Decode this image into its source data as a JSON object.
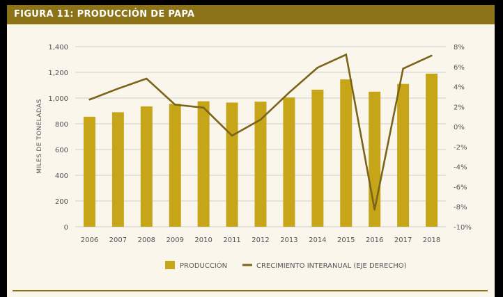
{
  "figure": {
    "title": "FIGURA 11: PRODUCCIÓN DE PAPA"
  },
  "colors": {
    "frame": "#8c7318",
    "bar": "#c6a618",
    "line": "#7a6419",
    "grid": "#cfcfcf",
    "background": "#faf6ec"
  },
  "chart_data": {
    "type": "bar+line",
    "title": "FIGURA 11: PRODUCCIÓN DE PAPA",
    "categories": [
      "2006",
      "2007",
      "2008",
      "2009",
      "2010",
      "2011",
      "2012",
      "2013",
      "2014",
      "2015",
      "2016",
      "2017",
      "2018"
    ],
    "ylabel": "MILES DE TONELADAS",
    "ylim": [
      0,
      1400
    ],
    "yticks": [
      "1,400",
      "1,200",
      "1,000",
      "800",
      "600",
      "400",
      "200",
      "0"
    ],
    "y2lim": [
      -10,
      8
    ],
    "y2ticks": [
      "8%",
      "6%",
      "4%",
      "2%",
      "0%",
      "-2%",
      "-4%",
      "-6%",
      "-8%",
      "-10%"
    ],
    "grid": true,
    "legend_position": "bottom",
    "series": [
      {
        "name": "PRODUCCIÓN",
        "type": "bar",
        "axis": "left",
        "values": [
          855,
          890,
          935,
          955,
          975,
          965,
          972,
          1005,
          1065,
          1145,
          1050,
          1110,
          1190
        ]
      },
      {
        "name": "CRECIMIENTO INTERANUAL (EJE DERECHO)",
        "type": "line",
        "axis": "right",
        "values": [
          2.7,
          3.8,
          4.8,
          2.2,
          1.9,
          -0.9,
          0.7,
          3.4,
          5.9,
          7.2,
          -8.3,
          5.8,
          7.1
        ]
      }
    ]
  }
}
